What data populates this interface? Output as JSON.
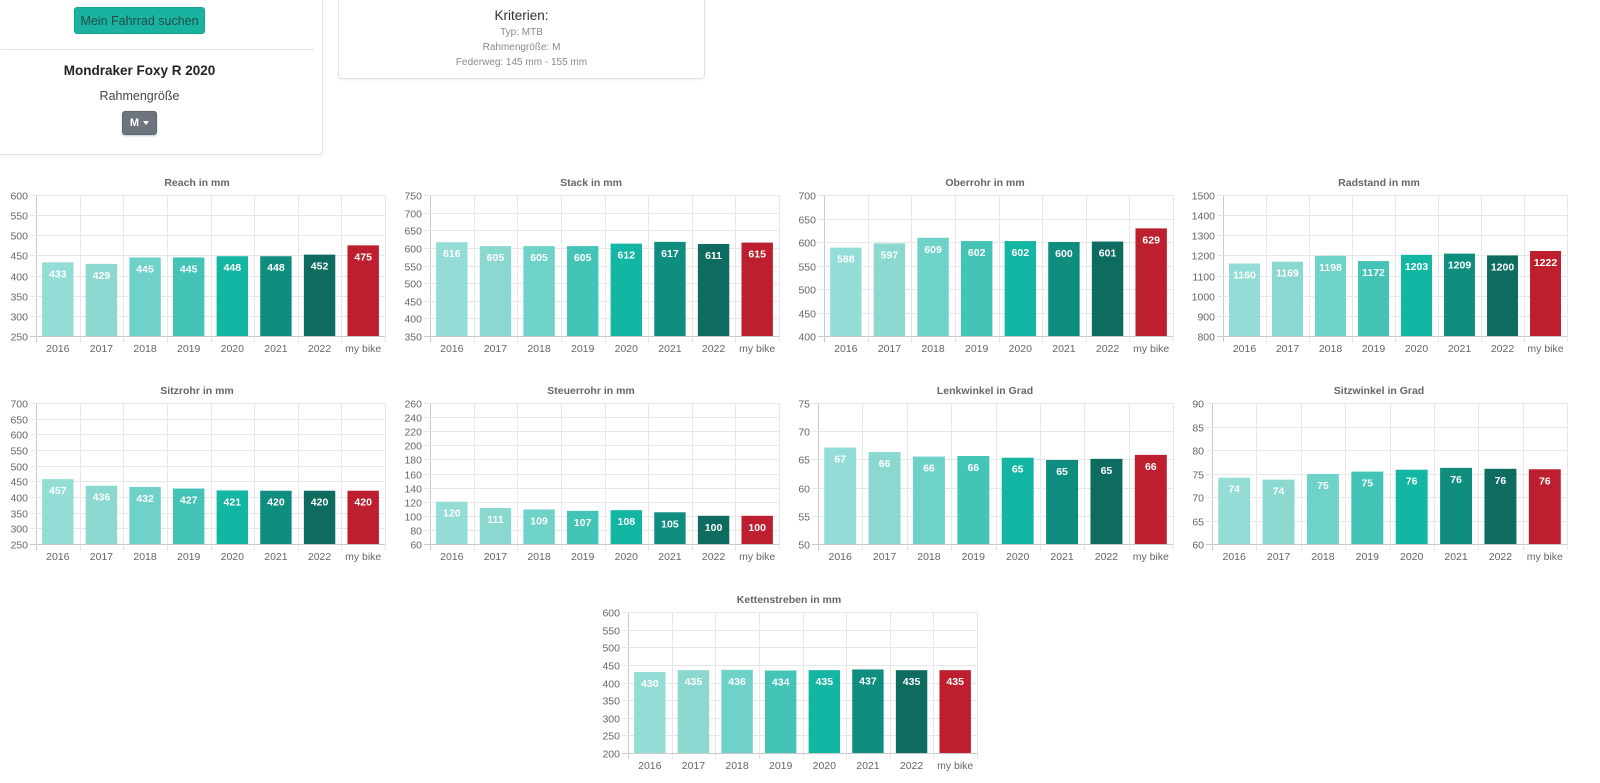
{
  "search": {
    "button_label": "Mein Fahrrad suchen"
  },
  "bike": {
    "name": "Mondraker Foxy R 2020",
    "frame_size_label": "Rahmengröße",
    "frame_size_value": "M"
  },
  "criteria": {
    "title": "Kriterien:",
    "items": [
      "Typ: MTB",
      "Rahmengröße: M",
      "Federweg: 145 mm - 155 mm"
    ]
  },
  "colors": {
    "bars": [
      "#93ddd6",
      "#8bd8d1",
      "#6fd2c8",
      "#44c3b7",
      "#13b5a3",
      "#0f8e80",
      "#0d6b60",
      "#bd1f2e"
    ],
    "button_bg": "#1ab3a0",
    "dropdown_bg": "#6c757d",
    "my_bike": "#bd1f2e"
  },
  "chart_data": [
    {
      "type": "bar",
      "title": "Reach in mm",
      "xlabel": "",
      "ylabel": "",
      "categories": [
        "2016",
        "2017",
        "2018",
        "2019",
        "2020",
        "2021",
        "2022",
        "my bike"
      ],
      "values": [
        433,
        429,
        445,
        445,
        448,
        448,
        452,
        475
      ],
      "data_labels": [
        "433",
        "429",
        "445",
        "445",
        "448",
        "448",
        "452",
        "475"
      ],
      "ylim": [
        250,
        600
      ],
      "yticks": [
        250,
        300,
        350,
        400,
        450,
        500,
        550,
        600
      ],
      "grid": true,
      "legend": "none"
    },
    {
      "type": "bar",
      "title": "Stack in mm",
      "xlabel": "",
      "ylabel": "",
      "categories": [
        "2016",
        "2017",
        "2018",
        "2019",
        "2020",
        "2021",
        "2022",
        "my bike"
      ],
      "values": [
        616,
        605,
        605,
        605,
        612,
        617,
        611,
        615
      ],
      "data_labels": [
        "616",
        "605",
        "605",
        "605",
        "612",
        "617",
        "611",
        "615"
      ],
      "ylim": [
        350,
        750
      ],
      "yticks": [
        350,
        400,
        450,
        500,
        550,
        600,
        650,
        700,
        750
      ],
      "grid": true,
      "legend": "none"
    },
    {
      "type": "bar",
      "title": "Oberrohr in mm",
      "xlabel": "",
      "ylabel": "",
      "categories": [
        "2016",
        "2017",
        "2018",
        "2019",
        "2020",
        "2021",
        "2022",
        "my bike"
      ],
      "values": [
        588,
        597,
        609,
        602,
        602,
        600,
        601,
        629
      ],
      "data_labels": [
        "588",
        "597",
        "609",
        "602",
        "602",
        "600",
        "601",
        "629"
      ],
      "ylim": [
        400,
        700
      ],
      "yticks": [
        400,
        450,
        500,
        550,
        600,
        650,
        700
      ],
      "grid": true,
      "legend": "none"
    },
    {
      "type": "bar",
      "title": "Radstand in mm",
      "xlabel": "",
      "ylabel": "",
      "categories": [
        "2016",
        "2017",
        "2018",
        "2019",
        "2020",
        "2021",
        "2022",
        "my bike"
      ],
      "values": [
        1160,
        1169,
        1198,
        1172,
        1203,
        1209,
        1200,
        1222
      ],
      "data_labels": [
        "1160",
        "1169",
        "1198",
        "1172",
        "1203",
        "1209",
        "1200",
        "1222"
      ],
      "ylim": [
        800,
        1500
      ],
      "yticks": [
        800,
        900,
        1000,
        1100,
        1200,
        1300,
        1400,
        1500
      ],
      "grid": true,
      "legend": "none"
    },
    {
      "type": "bar",
      "title": "Sitzrohr in mm",
      "xlabel": "",
      "ylabel": "",
      "categories": [
        "2016",
        "2017",
        "2018",
        "2019",
        "2020",
        "2021",
        "2022",
        "my bike"
      ],
      "values": [
        457,
        436,
        432,
        427,
        421,
        420,
        420,
        420
      ],
      "data_labels": [
        "457",
        "436",
        "432",
        "427",
        "421",
        "420",
        "420",
        "420"
      ],
      "ylim": [
        250,
        700
      ],
      "yticks": [
        250,
        300,
        350,
        400,
        450,
        500,
        550,
        600,
        650,
        700
      ],
      "grid": true,
      "legend": "none"
    },
    {
      "type": "bar",
      "title": "Steuerrohr in mm",
      "xlabel": "",
      "ylabel": "",
      "categories": [
        "2016",
        "2017",
        "2018",
        "2019",
        "2020",
        "2021",
        "2022",
        "my bike"
      ],
      "values": [
        120,
        111,
        109,
        107,
        108,
        105,
        100,
        100
      ],
      "data_labels": [
        "120",
        "111",
        "109",
        "107",
        "108",
        "105",
        "100",
        "100"
      ],
      "ylim": [
        60,
        260
      ],
      "yticks": [
        60,
        80,
        100,
        120,
        140,
        160,
        180,
        200,
        220,
        240,
        260
      ],
      "grid": true,
      "legend": "none"
    },
    {
      "type": "bar",
      "title": "Lenkwinkel in Grad",
      "xlabel": "",
      "ylabel": "",
      "categories": [
        "2016",
        "2017",
        "2018",
        "2019",
        "2020",
        "2021",
        "2022",
        "my bike"
      ],
      "values": [
        67.1,
        66.3,
        65.5,
        65.6,
        65.3,
        64.9,
        65.1,
        65.8
      ],
      "data_labels": [
        "67",
        "66",
        "66",
        "66",
        "65",
        "65",
        "65",
        "66"
      ],
      "ylim": [
        50,
        75
      ],
      "yticks": [
        50,
        55,
        60,
        65,
        70,
        75
      ],
      "grid": true,
      "legend": "none"
    },
    {
      "type": "bar",
      "title": "Sitzwinkel in Grad",
      "xlabel": "",
      "ylabel": "",
      "categories": [
        "2016",
        "2017",
        "2018",
        "2019",
        "2020",
        "2021",
        "2022",
        "my bike"
      ],
      "values": [
        74.1,
        73.7,
        74.9,
        75.4,
        75.8,
        76.2,
        76.0,
        75.9
      ],
      "data_labels": [
        "74",
        "74",
        "75",
        "75",
        "76",
        "76",
        "76",
        "76"
      ],
      "ylim": [
        60,
        90
      ],
      "yticks": [
        60,
        65,
        70,
        75,
        80,
        85,
        90
      ],
      "grid": true,
      "legend": "none"
    },
    {
      "type": "bar",
      "title": "Kettenstreben in mm",
      "xlabel": "",
      "ylabel": "",
      "categories": [
        "2016",
        "2017",
        "2018",
        "2019",
        "2020",
        "2021",
        "2022",
        "my bike"
      ],
      "values": [
        430,
        435,
        436,
        434,
        435,
        437,
        435,
        435
      ],
      "data_labels": [
        "430",
        "435",
        "436",
        "434",
        "435",
        "437",
        "435",
        "435"
      ],
      "ylim": [
        200,
        600
      ],
      "yticks": [
        200,
        250,
        300,
        350,
        400,
        450,
        500,
        550,
        600
      ],
      "grid": true,
      "legend": "none"
    }
  ]
}
